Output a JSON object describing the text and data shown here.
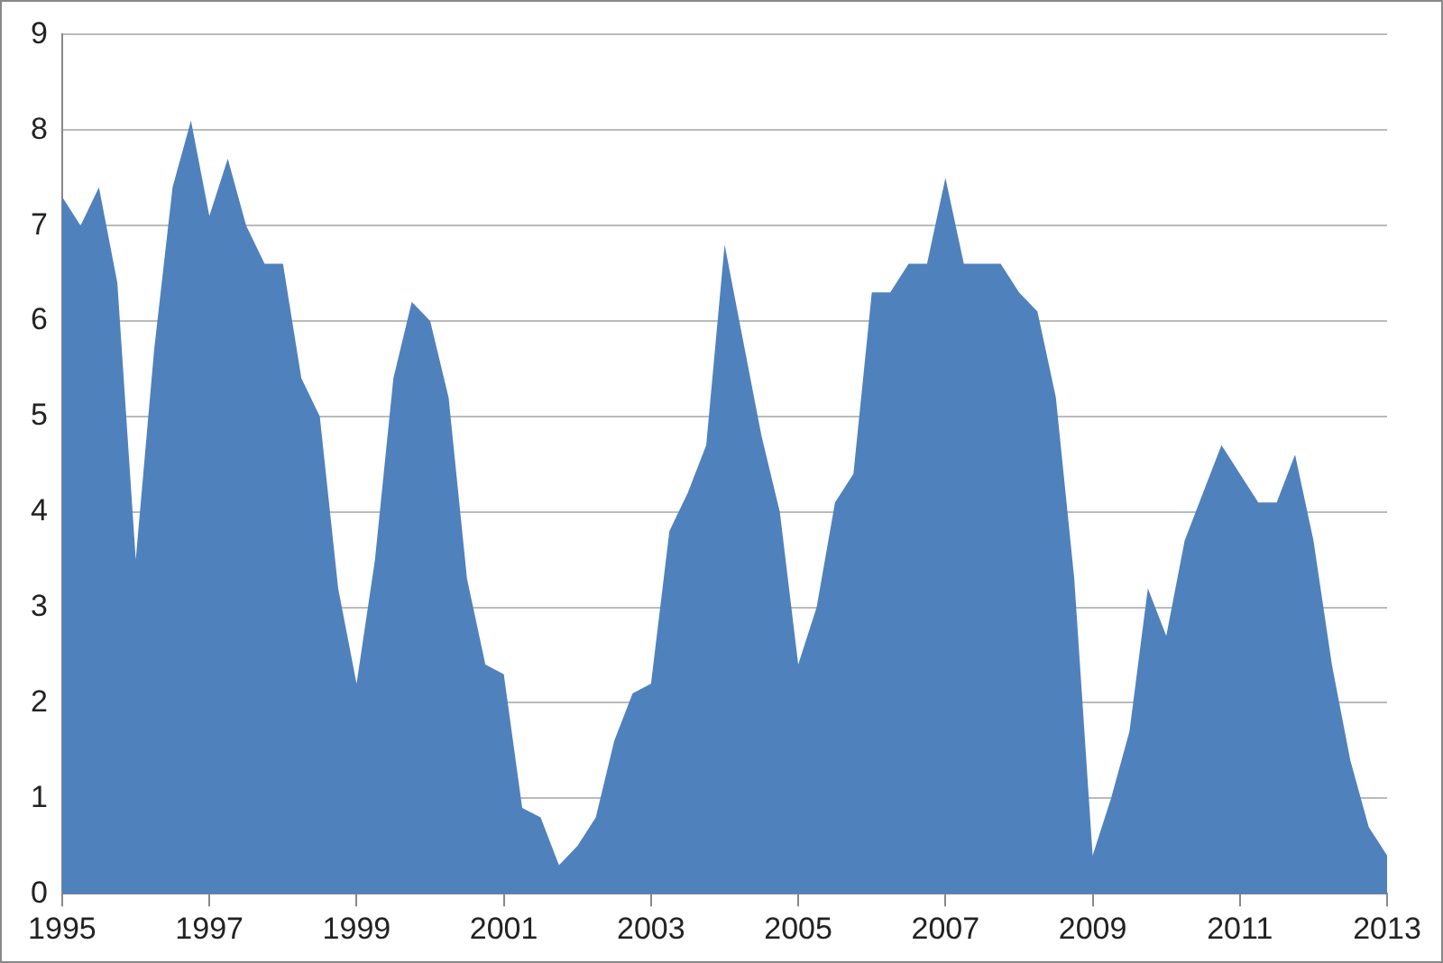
{
  "chart_data": {
    "type": "area",
    "categories": [
      "1995",
      null,
      null,
      null,
      null,
      null,
      null,
      null,
      "1997",
      null,
      null,
      null,
      null,
      null,
      null,
      null,
      "1999",
      null,
      null,
      null,
      null,
      null,
      null,
      null,
      "2001",
      null,
      null,
      null,
      null,
      null,
      null,
      null,
      "2003",
      null,
      null,
      null,
      null,
      null,
      null,
      null,
      "2005",
      null,
      null,
      null,
      null,
      null,
      null,
      null,
      "2007",
      null,
      null,
      null,
      null,
      null,
      null,
      null,
      "2009",
      null,
      null,
      null,
      null,
      null,
      null,
      null,
      "2011",
      null,
      null,
      null,
      null,
      null,
      null,
      null,
      "2013"
    ],
    "series": [
      {
        "color": "#4f81bd",
        "values": [
          7.3,
          7.0,
          7.4,
          6.4,
          3.5,
          5.7,
          7.4,
          8.1,
          7.1,
          7.7,
          7.0,
          6.6,
          6.6,
          5.4,
          5.0,
          3.2,
          2.2,
          3.5,
          5.4,
          6.2,
          6.0,
          5.2,
          3.3,
          2.4,
          2.3,
          0.9,
          0.8,
          0.3,
          0.5,
          0.8,
          1.6,
          2.1,
          2.2,
          3.8,
          4.2,
          4.7,
          6.8,
          5.8,
          4.8,
          4.0,
          2.4,
          3.0,
          4.1,
          4.4,
          6.3,
          6.3,
          6.6,
          6.6,
          7.5,
          6.6,
          6.6,
          6.6,
          6.3,
          6.1,
          5.2,
          3.3,
          0.4,
          1.0,
          1.7,
          3.2,
          2.7,
          3.7,
          4.2,
          4.7,
          4.4,
          4.1,
          4.1,
          4.6,
          3.7,
          2.4,
          1.4,
          0.7,
          0.4
        ]
      }
    ],
    "ylim": [
      0,
      9
    ],
    "yticks": [
      0,
      1,
      2,
      3,
      4,
      5,
      6,
      7,
      8,
      9
    ],
    "grid": "y",
    "legend": false
  }
}
